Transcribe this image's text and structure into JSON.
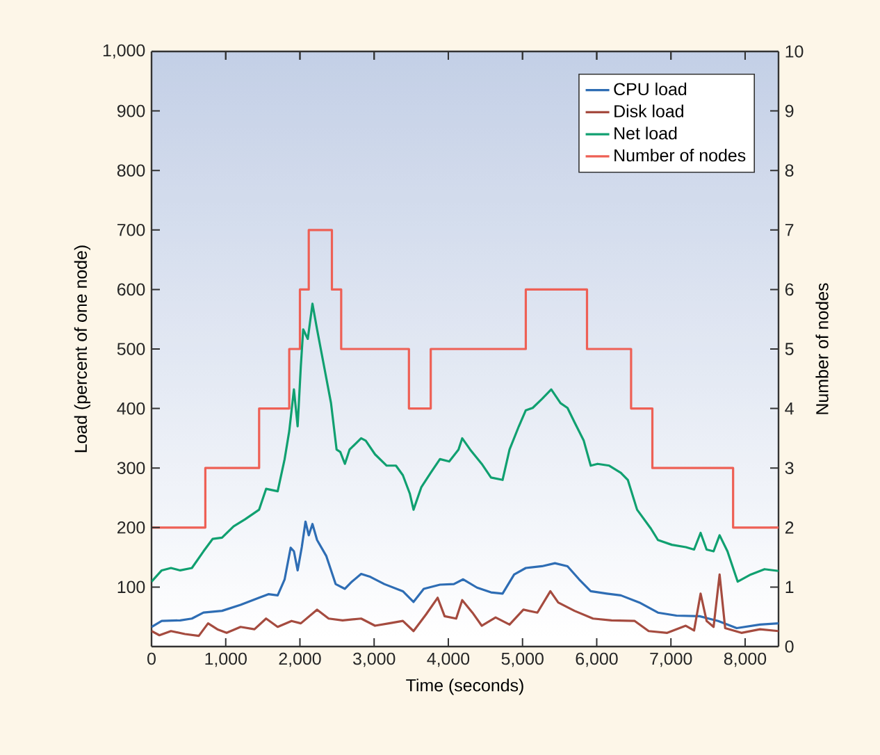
{
  "chart_data": {
    "type": "line",
    "xlabel": "Time (seconds)",
    "ylabel": "Load (percent of one node)",
    "y2label": "Number of nodes",
    "xlim": [
      0,
      8450
    ],
    "ylim": [
      0,
      1000
    ],
    "y2lim": [
      0,
      10
    ],
    "xticks": [
      {
        "value": 0,
        "label": "0"
      },
      {
        "value": 1000,
        "label": "1,000"
      },
      {
        "value": 2000,
        "label": "2,000"
      },
      {
        "value": 3000,
        "label": "3,000"
      },
      {
        "value": 4000,
        "label": "4,000"
      },
      {
        "value": 5000,
        "label": "5,000"
      },
      {
        "value": 6000,
        "label": "6,000"
      },
      {
        "value": 7000,
        "label": "7,000"
      },
      {
        "value": 8000,
        "label": "8,000"
      }
    ],
    "yticks": [
      100,
      200,
      300,
      400,
      500,
      600,
      700,
      800,
      900,
      {
        "value": 1000,
        "label": "1,000"
      }
    ],
    "y2ticks": [
      0,
      1,
      2,
      3,
      4,
      5,
      6,
      7,
      8,
      9,
      10
    ],
    "legend": "top right",
    "grid": false,
    "marker": "none",
    "line_style": "solid",
    "series": [
      {
        "name": "CPU load",
        "color": "#2e6db4",
        "x": [
          0,
          137,
          387,
          544,
          700,
          950,
          1200,
          1450,
          1575,
          1700,
          1794,
          1875,
          1919,
          1969,
          2025,
          2075,
          2119,
          2169,
          2231,
          2356,
          2481,
          2606,
          2700,
          2825,
          2950,
          3137,
          3387,
          3531,
          3669,
          3887,
          4075,
          4200,
          4387,
          4575,
          4731,
          4887,
          5044,
          5262,
          5437,
          5606,
          5762,
          5919,
          6137,
          6325,
          6575,
          6825,
          7075,
          7387,
          7637,
          7887,
          8200,
          8450
        ],
        "values": [
          33,
          43,
          44,
          47,
          57,
          60,
          70,
          82,
          88,
          86,
          113,
          166,
          160,
          128,
          167,
          210,
          187,
          206,
          179,
          152,
          105,
          97,
          109,
          122,
          117,
          105,
          93,
          75,
          97,
          104,
          105,
          113,
          99,
          91,
          89,
          121,
          132,
          135,
          140,
          135,
          113,
          93,
          89,
          86,
          74,
          57,
          52,
          51,
          43,
          31,
          37,
          39
        ]
      },
      {
        "name": "Disk load",
        "color": "#a54b3f",
        "x": [
          0,
          106,
          262,
          450,
          637,
          762,
          887,
          1012,
          1200,
          1387,
          1544,
          1700,
          1887,
          2012,
          2231,
          2387,
          2575,
          2825,
          3012,
          3200,
          3387,
          3531,
          3700,
          3856,
          3950,
          4106,
          4187,
          4325,
          4450,
          4637,
          4825,
          5012,
          5200,
          5375,
          5481,
          5700,
          5950,
          6200,
          6512,
          6700,
          6950,
          7200,
          7312,
          7400,
          7481,
          7575,
          7656,
          7731,
          7950,
          8200,
          8450
        ],
        "values": [
          26,
          19,
          26,
          21,
          18,
          39,
          29,
          23,
          33,
          29,
          47,
          33,
          43,
          39,
          62,
          47,
          44,
          47,
          35,
          39,
          43,
          26,
          54,
          82,
          51,
          47,
          78,
          57,
          35,
          49,
          37,
          62,
          57,
          93,
          74,
          60,
          47,
          44,
          43,
          26,
          23,
          35,
          27,
          89,
          43,
          33,
          121,
          31,
          23,
          29,
          26
        ]
      },
      {
        "name": "Net load",
        "color": "#10a070",
        "x": [
          0,
          137,
          262,
          387,
          544,
          700,
          825,
          950,
          1106,
          1262,
          1450,
          1544,
          1700,
          1794,
          1856,
          1919,
          1969,
          2012,
          2044,
          2106,
          2169,
          2231,
          2325,
          2419,
          2494,
          2544,
          2606,
          2669,
          2825,
          2887,
          3012,
          3169,
          3294,
          3387,
          3481,
          3531,
          3637,
          3762,
          3887,
          4012,
          4137,
          4187,
          4294,
          4450,
          4575,
          4731,
          4825,
          4950,
          5044,
          5137,
          5262,
          5387,
          5512,
          5606,
          5700,
          5825,
          5919,
          6012,
          6169,
          6325,
          6419,
          6544,
          6731,
          6825,
          7012,
          7200,
          7312,
          7400,
          7481,
          7575,
          7656,
          7762,
          7900,
          8075,
          8262,
          8450
        ],
        "values": [
          109,
          128,
          132,
          128,
          132,
          160,
          181,
          183,
          202,
          214,
          230,
          265,
          261,
          315,
          362,
          432,
          370,
          471,
          533,
          517,
          576,
          533,
          471,
          409,
          331,
          327,
          307,
          331,
          350,
          346,
          323,
          304,
          304,
          288,
          257,
          230,
          268,
          292,
          315,
          311,
          331,
          350,
          331,
          307,
          284,
          280,
          331,
          370,
          397,
          401,
          416,
          432,
          409,
          401,
          377,
          346,
          304,
          307,
          304,
          292,
          280,
          230,
          198,
          179,
          171,
          167,
          163,
          191,
          163,
          160,
          187,
          160,
          109,
          121,
          130,
          127
        ]
      },
      {
        "name": "Number of nodes",
        "color": "#ee6055",
        "type": "step",
        "axis": "y2",
        "x": [
          0,
          725,
          1450,
          1856,
          2000,
          2119,
          2431,
          2556,
          3469,
          3763,
          5044,
          5869,
          6463,
          6750,
          7838,
          8450
        ],
        "values": [
          2,
          3,
          4,
          5,
          6,
          7,
          6,
          5,
          4,
          5,
          6,
          5,
          4,
          3,
          2,
          2
        ]
      }
    ]
  }
}
